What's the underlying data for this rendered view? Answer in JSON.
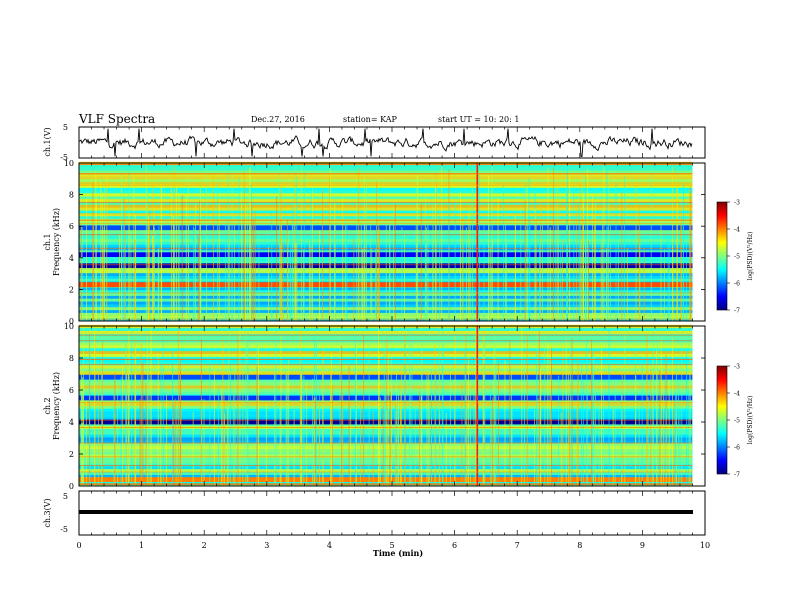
{
  "header": {
    "title": "VLF Spectra",
    "date": "Dec.27, 2016",
    "station": "station= KAP",
    "start": "start  UT =  10: 20: 1"
  },
  "panels": {
    "ch1_wave": {
      "ylabel": "ch.1(V)",
      "ticks": [
        "5",
        "-5"
      ]
    },
    "ch1_spec": {
      "ylabel_top": "ch.1",
      "ylabel": "Frequency (kHz)",
      "ticks": [
        "10",
        "8",
        "6",
        "4",
        "2",
        "0"
      ]
    },
    "ch2_spec": {
      "ylabel_top": "ch.2",
      "ylabel": "Frequency (kHz)",
      "ticks": [
        "10",
        "8",
        "6",
        "4",
        "2",
        "0"
      ]
    },
    "ch3_wave": {
      "ylabel": "ch.3(V)",
      "ticks": [
        "5",
        "-5"
      ]
    }
  },
  "colorbar": {
    "label": "log(PSD)(V²/Hz)",
    "ticks": [
      "-3",
      "-4",
      "-5",
      "-6",
      "-7"
    ],
    "colors": [
      "#00007f",
      "#0000ff",
      "#007fff",
      "#00ffff",
      "#7fff7f",
      "#ffff00",
      "#ff7f00",
      "#ff0000",
      "#7f0000"
    ]
  },
  "xaxis": {
    "label": "Time  (min)",
    "ticks": [
      "0",
      "1",
      "2",
      "3",
      "4",
      "5",
      "6",
      "7",
      "8",
      "9",
      "10"
    ]
  },
  "chart_data": {
    "type": "heatmap",
    "title": "VLF Spectra",
    "x_unit": "min",
    "xlim": [
      0,
      10
    ],
    "data_end_min": 9.8,
    "spectrogram_ylim_khz": [
      0,
      10
    ],
    "color_scale_log_psd": [
      -7,
      -3
    ],
    "waveform_ylim_v": [
      -5,
      5
    ],
    "ch1_waveform_mean_v": 0,
    "ch3_waveform_constant_v": 0,
    "ch1_band_features": [
      {
        "freq_khz": 3.5,
        "log_psd": -6.8
      },
      {
        "freq_khz": 4.2,
        "log_psd": -6.5
      },
      {
        "freq_khz": 5.9,
        "log_psd": -6.2
      },
      {
        "freq_khz": 2.3,
        "log_psd": -3.8
      }
    ],
    "ch2_band_features": [
      {
        "freq_khz": 4.0,
        "log_psd": -6.9
      },
      {
        "freq_khz": 5.5,
        "log_psd": -6.3
      },
      {
        "freq_khz": 6.8,
        "log_psd": -6.2
      },
      {
        "freq_khz": 0.4,
        "log_psd": -4.0
      }
    ],
    "strong_impulse_min": 6.35
  }
}
